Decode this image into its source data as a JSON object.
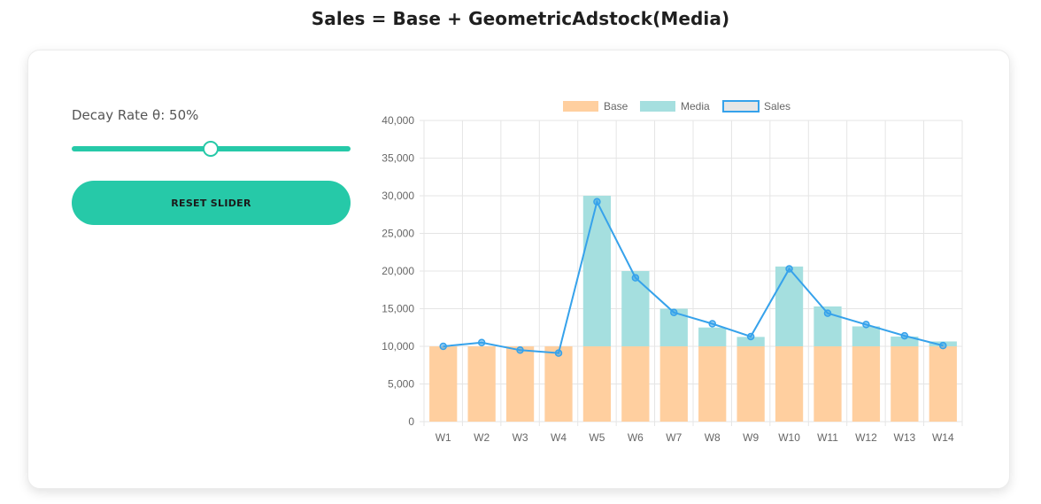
{
  "page": {
    "title": "Sales = Base + GeometricAdstock(Media)"
  },
  "controls": {
    "slider_label": "Decay Rate θ: 50%",
    "slider_value": 0.5,
    "reset_label": "RESET SLIDER"
  },
  "colors": {
    "accent": "#26c9a8",
    "base": "#ffcf9f",
    "media": "#a5dfdf",
    "sales_line": "#36a2eb",
    "grid": "#e5e5e5"
  },
  "chart_data": {
    "type": "bar",
    "stacked": true,
    "categories": [
      "W1",
      "W2",
      "W3",
      "W4",
      "W5",
      "W6",
      "W7",
      "W8",
      "W9",
      "W10",
      "W11",
      "W12",
      "W13",
      "W14"
    ],
    "series": [
      {
        "name": "Base",
        "kind": "bar",
        "color": "#ffcf9f",
        "values": [
          10000,
          10000,
          10000,
          10000,
          10000,
          10000,
          10000,
          10000,
          10000,
          10000,
          10000,
          10000,
          10000,
          10000
        ]
      },
      {
        "name": "Media",
        "kind": "bar",
        "color": "#a5dfdf",
        "values": [
          0,
          0,
          0,
          0,
          20000,
          10000,
          5000,
          2500,
          1250,
          10600,
          5300,
          2650,
          1300,
          650
        ]
      },
      {
        "name": "Sales",
        "kind": "line",
        "color": "#36a2eb",
        "values": [
          10000,
          10500,
          9500,
          9100,
          29200,
          19100,
          14500,
          13000,
          11300,
          20300,
          14400,
          12900,
          11400,
          10100
        ]
      }
    ],
    "legend": [
      "Base",
      "Media",
      "Sales"
    ],
    "legend_position": "top",
    "yticks": [
      "0",
      "5,000",
      "10,000",
      "15,000",
      "20,000",
      "25,000",
      "30,000",
      "35,000",
      "40,000"
    ],
    "ylim": [
      0,
      40000
    ],
    "grid": true
  }
}
